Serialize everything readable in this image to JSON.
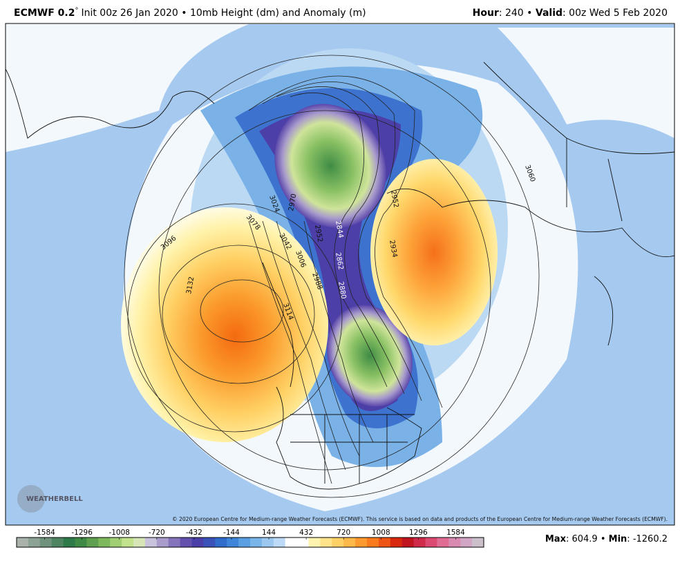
{
  "header": {
    "model": "ECMWF 0.2",
    "degree": "°",
    "init": "Init 00z 26 Jan 2020 • 10mb Height (dm) and Anomaly (m)",
    "hour_label": "Hour",
    "hour_value": ": 240 • ",
    "valid_label": "Valid",
    "valid_value": ": 00z Wed 5 Feb 2020"
  },
  "map": {
    "contour_labels": [
      3060,
      3096,
      3078,
      3132,
      3042,
      3024,
      3006,
      2988,
      2970,
      2952,
      2934,
      2862,
      2844,
      2880,
      3114,
      2952
    ],
    "copyright": "© 2020 European Centre for Medium-range Weather Forecasts (ECMWF). This service is based on data and products of the European Centre for Medium-range Weather Forecasts (ECMWF).",
    "logo": "WEATHERBELL"
  },
  "legend": {
    "range": [
      -1800,
      1800
    ],
    "ticks": [
      -1584,
      -1296,
      -1008,
      -720,
      -432,
      -144,
      144,
      432,
      720,
      1008,
      1296,
      1584
    ],
    "colors": [
      "#a9b3ab",
      "#8ca294",
      "#6f927d",
      "#4f8463",
      "#2e7a48",
      "#3f8a45",
      "#5ea04f",
      "#7db85c",
      "#a0cf73",
      "#c3e28e",
      "#d6e6b7",
      "#c9c2dc",
      "#a99bcc",
      "#8574bb",
      "#6451ad",
      "#4a3ea8",
      "#3a52b8",
      "#2f6ccc",
      "#3f86da",
      "#5b9fe3",
      "#7ab5ea",
      "#9cc8f0",
      "#bcdaf5",
      "#ffffff",
      "#ffffff",
      "#fff3b0",
      "#ffe38a",
      "#ffd066",
      "#ffb84a",
      "#ff9a30",
      "#fa7b1e",
      "#ee5414",
      "#d8290e",
      "#c0141f",
      "#cf2a4a",
      "#dc4a72",
      "#e06b93",
      "#d98ab0",
      "#d1a5c4",
      "#cbbfcc"
    ],
    "max_label": "Max",
    "max_value": 604.9,
    "sep": " • ",
    "min_label": "Min",
    "min_value": -1260.2
  }
}
